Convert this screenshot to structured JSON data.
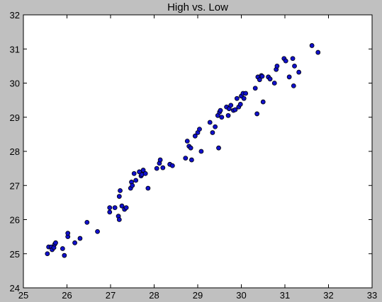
{
  "chart_data": {
    "type": "scatter",
    "title": "High vs. Low",
    "xlabel": "",
    "ylabel": "",
    "xlim": [
      25,
      33
    ],
    "ylim": [
      24,
      32
    ],
    "xticks": [
      "25",
      "26",
      "27",
      "28",
      "29",
      "30",
      "31",
      "32",
      "33"
    ],
    "yticks": [
      "24",
      "25",
      "26",
      "27",
      "28",
      "29",
      "30",
      "31",
      "32"
    ],
    "grid": false,
    "legend": "none",
    "colors": {
      "marker_fill": "#1010cc",
      "marker_edge": "#000000",
      "figure_bg": "#c0c0c0",
      "axes_bg": "#ffffff"
    },
    "points": [
      [
        25.55,
        25.0
      ],
      [
        25.58,
        25.2
      ],
      [
        25.64,
        25.2
      ],
      [
        25.66,
        25.12
      ],
      [
        25.7,
        25.18
      ],
      [
        25.72,
        25.28
      ],
      [
        25.74,
        25.32
      ],
      [
        25.9,
        25.15
      ],
      [
        25.94,
        24.95
      ],
      [
        26.02,
        25.5
      ],
      [
        26.02,
        25.6
      ],
      [
        26.18,
        25.32
      ],
      [
        26.3,
        25.45
      ],
      [
        26.46,
        25.92
      ],
      [
        26.7,
        25.65
      ],
      [
        26.98,
        26.35
      ],
      [
        26.98,
        26.22
      ],
      [
        27.1,
        26.35
      ],
      [
        27.18,
        26.1
      ],
      [
        27.2,
        26.0
      ],
      [
        27.2,
        26.68
      ],
      [
        27.22,
        26.85
      ],
      [
        27.26,
        26.4
      ],
      [
        27.32,
        26.3
      ],
      [
        27.36,
        26.35
      ],
      [
        27.46,
        26.92
      ],
      [
        27.48,
        27.1
      ],
      [
        27.5,
        27.0
      ],
      [
        27.54,
        27.35
      ],
      [
        27.58,
        27.15
      ],
      [
        27.66,
        27.4
      ],
      [
        27.7,
        27.28
      ],
      [
        27.72,
        27.32
      ],
      [
        27.75,
        27.45
      ],
      [
        27.8,
        27.35
      ],
      [
        27.86,
        26.92
      ],
      [
        28.06,
        27.5
      ],
      [
        28.12,
        27.65
      ],
      [
        28.14,
        27.75
      ],
      [
        28.2,
        27.52
      ],
      [
        28.36,
        27.62
      ],
      [
        28.42,
        27.58
      ],
      [
        28.72,
        27.8
      ],
      [
        28.76,
        28.3
      ],
      [
        28.8,
        28.15
      ],
      [
        28.84,
        28.1
      ],
      [
        28.86,
        27.75
      ],
      [
        28.94,
        28.45
      ],
      [
        29.0,
        28.55
      ],
      [
        29.04,
        28.65
      ],
      [
        29.08,
        28.0
      ],
      [
        29.28,
        28.85
      ],
      [
        29.34,
        28.55
      ],
      [
        29.4,
        28.72
      ],
      [
        29.46,
        29.05
      ],
      [
        29.48,
        28.1
      ],
      [
        29.5,
        29.15
      ],
      [
        29.52,
        29.2
      ],
      [
        29.55,
        29.0
      ],
      [
        29.66,
        29.3
      ],
      [
        29.7,
        29.05
      ],
      [
        29.72,
        29.25
      ],
      [
        29.76,
        29.35
      ],
      [
        29.82,
        29.2
      ],
      [
        29.86,
        29.22
      ],
      [
        29.9,
        29.55
      ],
      [
        29.94,
        29.3
      ],
      [
        29.98,
        29.38
      ],
      [
        30.0,
        29.62
      ],
      [
        30.04,
        29.7
      ],
      [
        30.06,
        29.55
      ],
      [
        30.1,
        29.7
      ],
      [
        30.32,
        29.85
      ],
      [
        30.36,
        29.1
      ],
      [
        30.38,
        30.18
      ],
      [
        30.42,
        30.1
      ],
      [
        30.46,
        30.22
      ],
      [
        30.48,
        30.2
      ],
      [
        30.5,
        29.45
      ],
      [
        30.62,
        30.18
      ],
      [
        30.66,
        30.12
      ],
      [
        30.76,
        30.0
      ],
      [
        30.8,
        30.4
      ],
      [
        30.82,
        30.5
      ],
      [
        30.98,
        30.72
      ],
      [
        31.02,
        30.65
      ],
      [
        31.1,
        30.18
      ],
      [
        31.18,
        30.72
      ],
      [
        31.2,
        29.92
      ],
      [
        31.22,
        30.5
      ],
      [
        31.32,
        30.32
      ],
      [
        31.62,
        31.1
      ],
      [
        31.76,
        30.9
      ]
    ]
  }
}
